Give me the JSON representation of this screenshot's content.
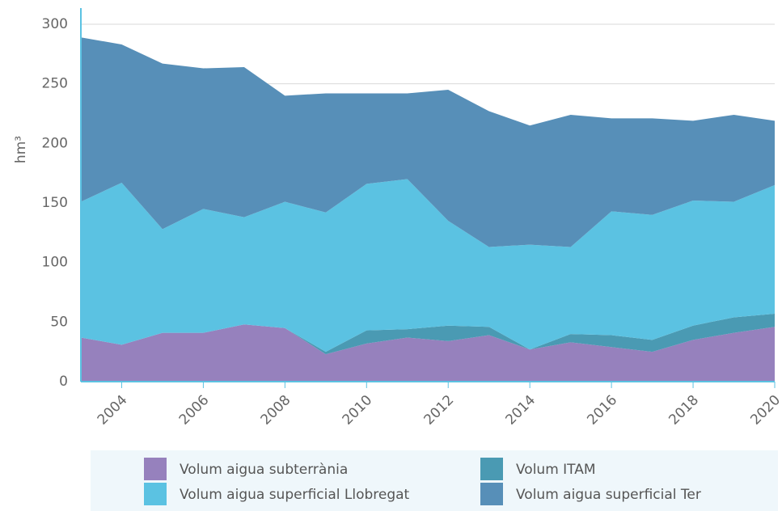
{
  "chart_data": {
    "type": "stacked_area",
    "y_label": "hm³",
    "x": [
      2003,
      2004,
      2005,
      2006,
      2007,
      2008,
      2009,
      2010,
      2011,
      2012,
      2013,
      2014,
      2015,
      2016,
      2017,
      2018,
      2019,
      2020
    ],
    "series": [
      {
        "name": "Volum aigua subterrània",
        "color": "#9681bd",
        "values": [
          37,
          31,
          41,
          41,
          48,
          45,
          23,
          32,
          37,
          34,
          39,
          27,
          33,
          29,
          25,
          35,
          41,
          46
        ]
      },
      {
        "name": "Volum ITAM",
        "color": "#4a9ab3",
        "values": [
          0,
          0,
          0,
          0,
          0,
          0,
          2,
          11,
          7,
          13,
          7,
          0,
          7,
          10,
          10,
          12,
          13,
          11
        ]
      },
      {
        "name": "Volum aigua superficial Llobregat",
        "color": "#5bc2e2",
        "values": [
          114,
          136,
          87,
          104,
          90,
          106,
          117,
          123,
          126,
          88,
          67,
          88,
          73,
          104,
          105,
          105,
          97,
          108
        ]
      },
      {
        "name": "Volum aigua superficial Ter",
        "color": "#578fb8",
        "values": [
          138,
          116,
          139,
          118,
          126,
          89,
          100,
          76,
          72,
          110,
          114,
          100,
          111,
          78,
          81,
          67,
          73,
          54
        ]
      }
    ],
    "xlim": [
      2003,
      2020
    ],
    "xticks": [
      2004,
      2006,
      2008,
      2010,
      2012,
      2014,
      2016,
      2018,
      2020
    ],
    "ylim": [
      0,
      300
    ],
    "yticks": [
      0,
      50,
      100,
      150,
      200,
      250,
      300
    ],
    "grid": true
  }
}
